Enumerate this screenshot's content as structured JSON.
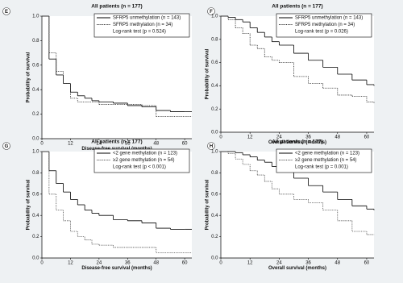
{
  "chart_data": [
    {
      "type": "line",
      "step": true,
      "panel": "E",
      "title": "All patients (n = 177)",
      "x_label": "Disease-free survival (months)",
      "y_label": "Probability of survival",
      "annotation": "Log-rank test (p = 0.524)",
      "legend": "upper right",
      "x": [
        0,
        3,
        6,
        9,
        12,
        15,
        18,
        21,
        24,
        30,
        36,
        42,
        48,
        54,
        60,
        63
      ],
      "series": [
        {
          "name": "SFRP5 unmethylation (n = 143)",
          "color": "#000000",
          "style": "solid",
          "values": [
            1.0,
            0.65,
            0.52,
            0.45,
            0.38,
            0.35,
            0.33,
            0.31,
            0.3,
            0.29,
            0.27,
            0.26,
            0.23,
            0.22,
            0.22,
            0.22
          ]
        },
        {
          "name": "SFRP5 methylation (n = 34)",
          "color": "#333333",
          "style": "dotted",
          "values": [
            1.0,
            0.7,
            0.55,
            0.45,
            0.33,
            0.3,
            0.3,
            0.3,
            0.28,
            0.28,
            0.28,
            0.27,
            0.18,
            0.18,
            0.18,
            0.18
          ]
        }
      ],
      "xlim": [
        0,
        63
      ],
      "xticks": [
        0,
        12,
        24,
        36,
        48,
        60
      ],
      "ylim": [
        0,
        1
      ],
      "yticks": [
        {
          "value": 0,
          "label": "0.0"
        },
        0.2,
        0.4,
        0.6,
        0.8,
        {
          "value": 1,
          "label": "1.0"
        }
      ]
    },
    {
      "type": "line",
      "step": true,
      "panel": "F",
      "title": "All patients (n = 177)",
      "x_label": "Overall survival (months)",
      "y_label": "Probability of survival",
      "annotation": "Log-rank test (p = 0.026)",
      "legend": "upper right",
      "x": [
        0,
        3,
        6,
        9,
        12,
        15,
        18,
        21,
        24,
        30,
        36,
        42,
        48,
        54,
        60,
        63
      ],
      "series": [
        {
          "name": "SFRP5 unmethylation (n = 143)",
          "color": "#000000",
          "style": "solid",
          "values": [
            1.0,
            0.99,
            0.97,
            0.95,
            0.9,
            0.86,
            0.82,
            0.78,
            0.75,
            0.68,
            0.62,
            0.56,
            0.5,
            0.45,
            0.41,
            0.4
          ]
        },
        {
          "name": "SFRP5 methylation (n = 34)",
          "color": "#333333",
          "style": "dotted",
          "values": [
            1.0,
            0.97,
            0.9,
            0.85,
            0.75,
            0.72,
            0.65,
            0.62,
            0.6,
            0.48,
            0.42,
            0.38,
            0.32,
            0.31,
            0.26,
            0.25
          ]
        }
      ],
      "xlim": [
        0,
        63
      ],
      "xticks": [
        0,
        12,
        24,
        36,
        48,
        60
      ],
      "ylim": [
        0,
        1
      ],
      "yticks": [
        {
          "value": 0,
          "label": "0.0"
        },
        0.2,
        0.4,
        0.6,
        0.8,
        {
          "value": 1,
          "label": "1.0"
        }
      ]
    },
    {
      "type": "line",
      "step": true,
      "panel": "G",
      "title": "All patients (n = 177)",
      "x_label": "Disease-free survival (months)",
      "y_label": "Probability of survival",
      "annotation": "Log-rank test (p < 0.001)",
      "legend": "upper right",
      "x": [
        0,
        3,
        6,
        9,
        12,
        15,
        18,
        21,
        24,
        30,
        36,
        42,
        48,
        54,
        60,
        63
      ],
      "series": [
        {
          "name": "<2 gene methylation (n = 123)",
          "color": "#000000",
          "style": "solid",
          "values": [
            1.0,
            0.82,
            0.7,
            0.62,
            0.55,
            0.5,
            0.45,
            0.42,
            0.4,
            0.36,
            0.35,
            0.33,
            0.28,
            0.27,
            0.27,
            0.27
          ]
        },
        {
          "name": "≥2 gene methylation (n = 54)",
          "color": "#555555",
          "style": "dotted",
          "values": [
            1.0,
            0.6,
            0.45,
            0.35,
            0.25,
            0.2,
            0.17,
            0.13,
            0.12,
            0.1,
            0.1,
            0.1,
            0.05,
            0.05,
            0.05,
            0.05
          ]
        }
      ],
      "xlim": [
        0,
        63
      ],
      "xticks": [
        0,
        12,
        24,
        36,
        48,
        60
      ],
      "ylim": [
        0,
        1
      ],
      "yticks": [
        {
          "value": 0,
          "label": "0.0"
        },
        0.2,
        0.4,
        0.6,
        0.8,
        {
          "value": 1,
          "label": "1.0"
        }
      ]
    },
    {
      "type": "line",
      "step": true,
      "panel": "H",
      "title": "All patients (n = 177)",
      "x_label": "Overall survival (months)",
      "y_label": "Probability of survival",
      "annotation": "Log-rank test (p = 0.001)",
      "legend": "upper right",
      "x": [
        0,
        3,
        6,
        9,
        12,
        15,
        18,
        21,
        24,
        30,
        36,
        42,
        48,
        54,
        60,
        63
      ],
      "series": [
        {
          "name": "<2 gene methylation (n = 123)",
          "color": "#000000",
          "style": "solid",
          "values": [
            1.0,
            1.0,
            0.99,
            0.97,
            0.95,
            0.92,
            0.9,
            0.86,
            0.82,
            0.75,
            0.68,
            0.62,
            0.55,
            0.49,
            0.46,
            0.45
          ]
        },
        {
          "name": "≥2 gene methylation (n = 54)",
          "color": "#555555",
          "style": "dotted",
          "values": [
            1.0,
            0.98,
            0.93,
            0.88,
            0.82,
            0.78,
            0.72,
            0.65,
            0.6,
            0.55,
            0.52,
            0.45,
            0.35,
            0.25,
            0.22,
            0.22
          ]
        }
      ],
      "xlim": [
        0,
        63
      ],
      "xticks": [
        0,
        12,
        24,
        36,
        48,
        60
      ],
      "ylim": [
        0,
        1
      ],
      "yticks": [
        {
          "value": 0,
          "label": "0.0"
        },
        0.2,
        0.4,
        0.6,
        0.8,
        {
          "value": 1,
          "label": "1.0"
        }
      ]
    }
  ]
}
